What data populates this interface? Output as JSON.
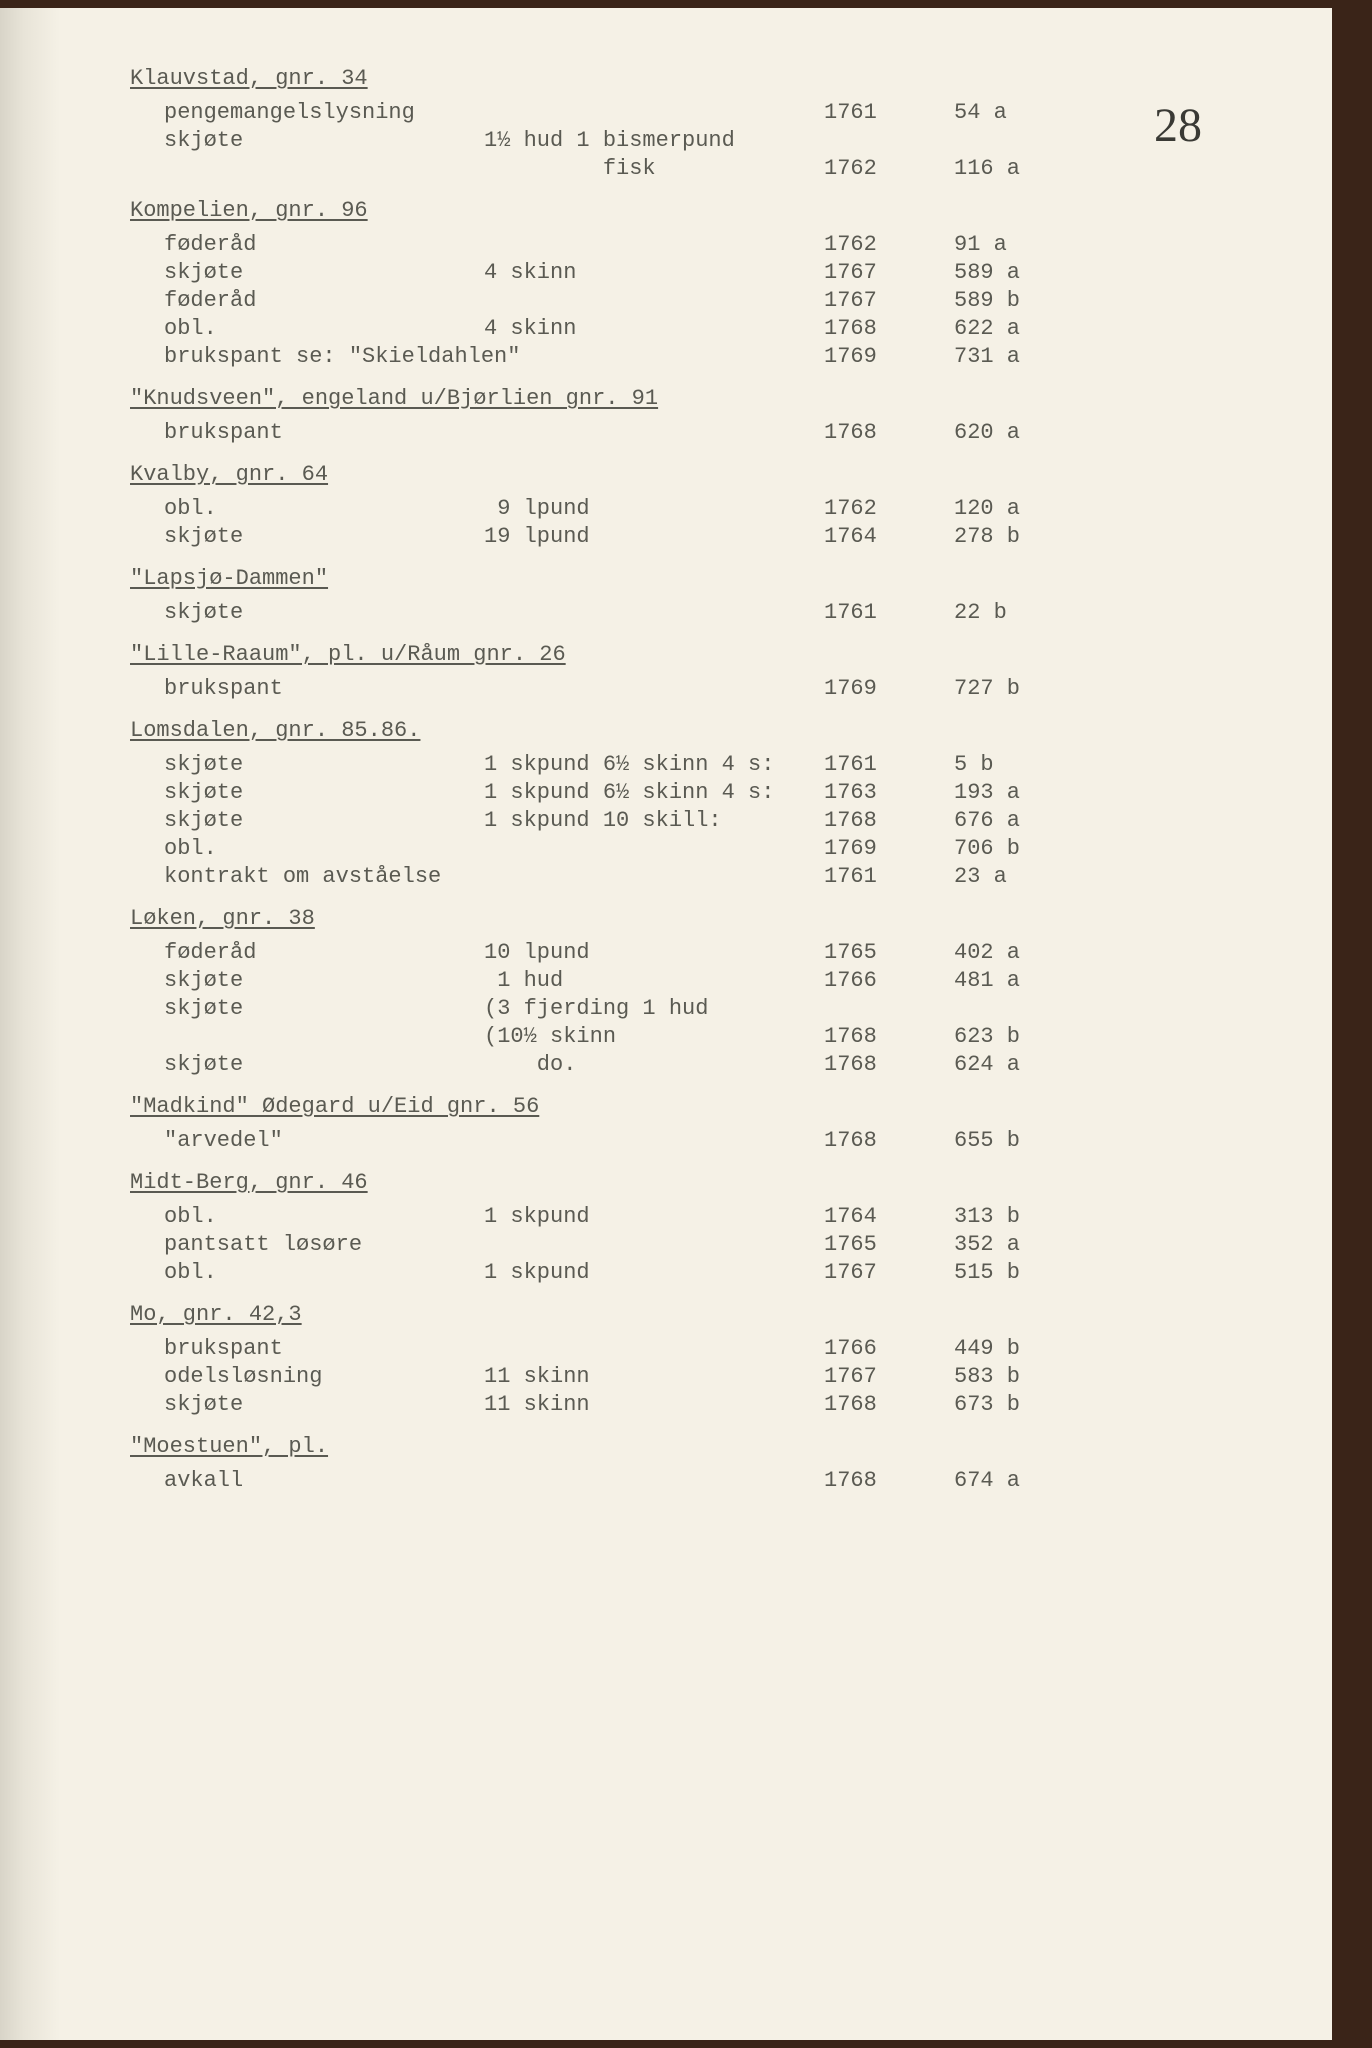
{
  "page_number": "28",
  "typography": {
    "font_family": "Courier New",
    "font_size_pt": 16,
    "page_num_size_pt": 36
  },
  "colors": {
    "paper": "#f5f1e6",
    "ink": "#5a5a52",
    "page_num": "#3a3a35",
    "binding": "#3a2418"
  },
  "sections": [
    {
      "heading": "Klauvstad, gnr. 34",
      "rows": [
        {
          "label": "pengemangelslysning",
          "amount": "",
          "year": "1761",
          "ref": "54 a"
        },
        {
          "label": "skjøte",
          "amount": "1½ hud 1 bismerpund",
          "year": "",
          "ref": ""
        },
        {
          "label": "",
          "amount": "         fisk",
          "year": "1762",
          "ref": "116 a"
        }
      ]
    },
    {
      "heading": "Kompelien, gnr. 96",
      "rows": [
        {
          "label": "føderåd",
          "amount": "",
          "year": "1762",
          "ref": "91 a"
        },
        {
          "label": "skjøte",
          "amount": "4 skinn",
          "year": "1767",
          "ref": "589 a"
        },
        {
          "label": "føderåd",
          "amount": "",
          "year": "1767",
          "ref": "589 b"
        },
        {
          "label": "obl.",
          "amount": "4 skinn",
          "year": "1768",
          "ref": "622 a"
        },
        {
          "label": "brukspant se: \"Skieldahlen\"",
          "amount": "",
          "year": "1769",
          "ref": "731 a"
        }
      ]
    },
    {
      "heading": "\"Knudsveen\", engeland u/Bjørlien gnr. 91",
      "rows": [
        {
          "label": "brukspant",
          "amount": "",
          "year": "1768",
          "ref": "620 a"
        }
      ]
    },
    {
      "heading": "Kvalby, gnr. 64",
      "rows": [
        {
          "label": "obl.",
          "amount": " 9 lpund",
          "year": "1762",
          "ref": "120 a"
        },
        {
          "label": "skjøte",
          "amount": "19 lpund",
          "year": "1764",
          "ref": "278 b"
        }
      ]
    },
    {
      "heading": "\"Lapsjø-Dammen\"",
      "rows": [
        {
          "label": "skjøte",
          "amount": "",
          "year": "1761",
          "ref": "22 b"
        }
      ]
    },
    {
      "heading": "\"Lille-Raaum\", pl. u/Råum gnr. 26",
      "rows": [
        {
          "label": "brukspant",
          "amount": "",
          "year": "1769",
          "ref": "727 b"
        }
      ]
    },
    {
      "heading": "Lomsdalen, gnr. 85.86.",
      "rows": [
        {
          "label": "skjøte",
          "amount": "1 skpund 6½ skinn 4 s:",
          "year": "1761",
          "ref": "5 b"
        },
        {
          "label": "skjøte",
          "amount": "1 skpund 6½ skinn 4 s:",
          "year": "1763",
          "ref": "193 a"
        },
        {
          "label": "skjøte",
          "amount": "1 skpund 10 skill:",
          "year": "1768",
          "ref": "676 a"
        },
        {
          "label": "obl.",
          "amount": "",
          "year": "1769",
          "ref": "706 b"
        },
        {
          "label": "kontrakt om avståelse",
          "amount": "",
          "year": "1761",
          "ref": "23 a"
        }
      ]
    },
    {
      "heading": "Løken, gnr. 38",
      "rows": [
        {
          "label": "føderåd",
          "amount": "10 lpund",
          "year": "1765",
          "ref": "402 a"
        },
        {
          "label": "skjøte",
          "amount": " 1 hud",
          "year": "1766",
          "ref": "481 a"
        },
        {
          "label": "skjøte",
          "amount": "(3 fjerding 1 hud",
          "year": "",
          "ref": ""
        },
        {
          "label": "",
          "amount": "(10½ skinn",
          "year": "1768",
          "ref": "623 b"
        },
        {
          "label": "skjøte",
          "amount": "    do.",
          "year": "1768",
          "ref": "624 a"
        }
      ]
    },
    {
      "heading": "\"Madkind\" Ødegard u/Eid gnr. 56",
      "rows": [
        {
          "label": "\"arvedel\"",
          "amount": "",
          "year": "1768",
          "ref": "655 b"
        }
      ]
    },
    {
      "heading": "Midt-Berg, gnr. 46",
      "rows": [
        {
          "label": "obl.",
          "amount": "1 skpund",
          "year": "1764",
          "ref": "313 b"
        },
        {
          "label": "pantsatt løsøre",
          "amount": "",
          "year": "1765",
          "ref": "352 a"
        },
        {
          "label": "obl.",
          "amount": "1 skpund",
          "year": "1767",
          "ref": "515 b"
        }
      ]
    },
    {
      "heading": "Mo, gnr. 42,3",
      "rows": [
        {
          "label": "brukspant",
          "amount": "",
          "year": "1766",
          "ref": "449 b"
        },
        {
          "label": "odelsløsning",
          "amount": "11 skinn",
          "year": "1767",
          "ref": "583 b"
        },
        {
          "label": "skjøte",
          "amount": "11 skinn",
          "year": "1768",
          "ref": "673 b"
        }
      ]
    },
    {
      "heading": "\"Moestuen\", pl.",
      "rows": [
        {
          "label": "avkall",
          "amount": "",
          "year": "1768",
          "ref": "674 a"
        }
      ]
    }
  ]
}
